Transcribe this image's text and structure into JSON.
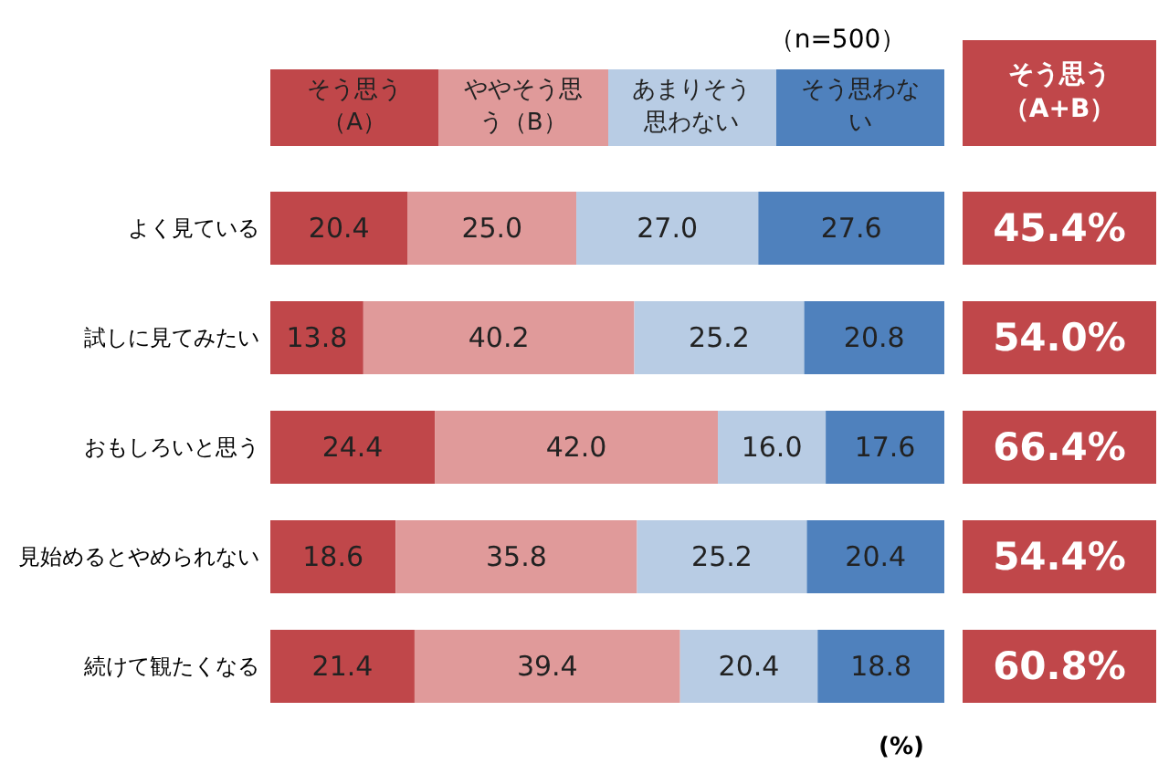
{
  "chart_data": {
    "type": "bar",
    "orientation": "horizontal",
    "stacked": true,
    "legend": "top",
    "tick_labels": "y",
    "xlim": [
      0,
      100
    ],
    "categories": [
      "よく見ている",
      "試しに見てみたい",
      "おもしろいと思う",
      "見始めるとやめられない",
      "続けて観たくなる"
    ],
    "series": [
      {
        "name": "そう思う（A）",
        "color": "#c0474a",
        "values": [
          20.4,
          13.8,
          24.4,
          18.6,
          21.4
        ],
        "value_labels": [
          "20.4",
          "13.8",
          "24.4",
          "18.6",
          "21.4"
        ]
      },
      {
        "name": "ややそう思う（B）",
        "color": "#e09a9a",
        "values": [
          25.0,
          40.2,
          42.0,
          35.8,
          39.4
        ],
        "value_labels": [
          "25.0",
          "40.2",
          "42.0",
          "35.8",
          "39.4"
        ]
      },
      {
        "name": "あまりそう思わない",
        "color": "#b8cce4",
        "values": [
          27.0,
          25.2,
          16.0,
          25.2,
          20.4
        ],
        "value_labels": [
          "27.0",
          "25.2",
          "16.0",
          "25.2",
          "20.4"
        ]
      },
      {
        "name": "そう思わない",
        "color": "#4f81bd",
        "values": [
          27.6,
          20.8,
          17.6,
          20.4,
          18.8
        ],
        "value_labels": [
          "27.6",
          "20.8",
          "17.6",
          "20.4",
          "18.8"
        ]
      }
    ],
    "annotations": [
      "（n=500）",
      "(%)",
      "そう思う（A+B）",
      "45.4%",
      "54.0%",
      "66.4%",
      "54.4%",
      "60.8%"
    ]
  }
}
